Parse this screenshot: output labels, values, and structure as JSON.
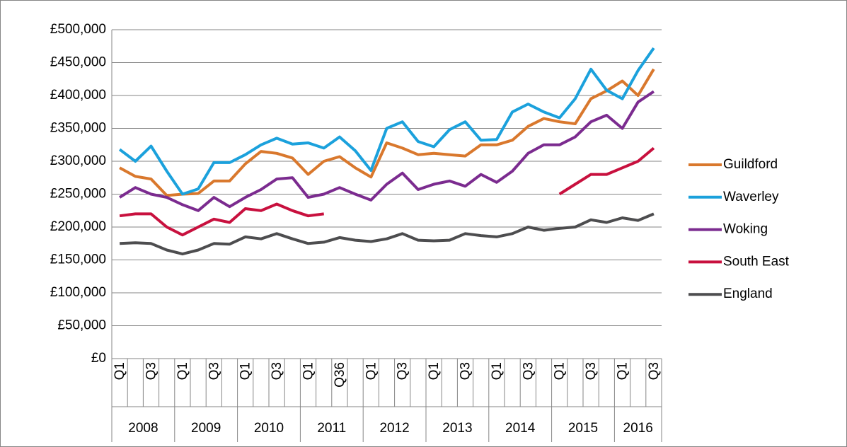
{
  "chart_data": {
    "type": "line",
    "categories": [
      "Q1",
      null,
      "Q3",
      null,
      "Q1",
      null,
      "Q3",
      null,
      "Q1",
      null,
      "Q3",
      null,
      "Q1",
      null,
      "Q36",
      null,
      "Q1",
      null,
      "Q3",
      null,
      "Q1",
      null,
      "Q3",
      null,
      "Q1",
      null,
      "Q3",
      null,
      "Q1",
      null,
      "Q3",
      null,
      "Q1",
      null,
      "Q3"
    ],
    "x_groups": [
      {
        "label": "2008",
        "span": 4
      },
      {
        "label": "2009",
        "span": 4
      },
      {
        "label": "2010",
        "span": 4
      },
      {
        "label": "2011",
        "span": 4
      },
      {
        "label": "2012",
        "span": 4
      },
      {
        "label": "2013",
        "span": 4
      },
      {
        "label": "2014",
        "span": 4
      },
      {
        "label": "2015",
        "span": 4
      },
      {
        "label": "2016",
        "span": 3
      }
    ],
    "series": [
      {
        "name": "Guildford",
        "color": "#d9782d",
        "values": [
          290000,
          277000,
          273000,
          248000,
          250000,
          251000,
          270000,
          270000,
          296000,
          315000,
          312000,
          305000,
          280000,
          300000,
          307000,
          290000,
          276000,
          328000,
          320000,
          310000,
          312000,
          310000,
          308000,
          325000,
          325000,
          332000,
          353000,
          365000,
          360000,
          357000,
          395000,
          407000,
          422000,
          400000,
          440000
        ]
      },
      {
        "name": "Waverley",
        "color": "#1ba1dc",
        "values": [
          318000,
          300000,
          323000,
          285000,
          250000,
          258000,
          298000,
          298000,
          310000,
          325000,
          335000,
          326000,
          328000,
          320000,
          337000,
          316000,
          286000,
          350000,
          360000,
          330000,
          322000,
          348000,
          360000,
          332000,
          333000,
          375000,
          387000,
          375000,
          366000,
          395000,
          440000,
          408000,
          395000,
          438000,
          472000
        ]
      },
      {
        "name": "Woking",
        "color": "#7b2b8f",
        "values": [
          245000,
          260000,
          250000,
          245000,
          234000,
          225000,
          245000,
          231000,
          245000,
          257000,
          273000,
          275000,
          245000,
          250000,
          260000,
          250000,
          241000,
          265000,
          282000,
          257000,
          265000,
          270000,
          262000,
          280000,
          268000,
          285000,
          312000,
          325000,
          325000,
          337000,
          360000,
          370000,
          350000,
          390000,
          406000
        ]
      },
      {
        "name": "South East",
        "color": "#c8103e",
        "values": [
          217000,
          220000,
          220000,
          200000,
          188000,
          200000,
          212000,
          207000,
          228000,
          225000,
          235000,
          225000,
          217000,
          220000,
          null,
          null,
          null,
          null,
          null,
          null,
          null,
          null,
          null,
          null,
          null,
          null,
          null,
          null,
          250000,
          265000,
          280000,
          280000,
          290000,
          300000,
          320000
        ]
      },
      {
        "name": "England",
        "color": "#4d4d4f",
        "values": [
          175000,
          176000,
          175000,
          165000,
          159000,
          165000,
          175000,
          174000,
          185000,
          182000,
          190000,
          182000,
          175000,
          177000,
          184000,
          180000,
          178000,
          182000,
          190000,
          180000,
          179000,
          180000,
          190000,
          187000,
          185000,
          190000,
          200000,
          195000,
          198000,
          200000,
          211000,
          207000,
          214000,
          210000,
          220000
        ]
      }
    ],
    "ylim": [
      0,
      500000
    ],
    "yticks": [
      {
        "value": 0,
        "label": "£0"
      },
      {
        "value": 50000,
        "label": "£50,000"
      },
      {
        "value": 100000,
        "label": "£100,000"
      },
      {
        "value": 150000,
        "label": "£150,000"
      },
      {
        "value": 200000,
        "label": "£200,000"
      },
      {
        "value": 250000,
        "label": "£250,000"
      },
      {
        "value": 300000,
        "label": "£300,000"
      },
      {
        "value": 350000,
        "label": "£350,000"
      },
      {
        "value": 400000,
        "label": "£400,000"
      },
      {
        "value": 450000,
        "label": "£450,000"
      },
      {
        "value": 500000,
        "label": "£500,000"
      }
    ],
    "grid": true,
    "legend": "right"
  }
}
